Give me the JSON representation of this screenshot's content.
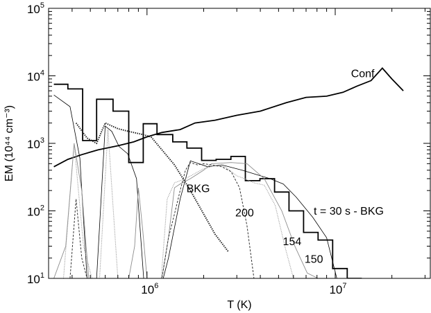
{
  "chart_data": {
    "type": "line",
    "xlabel": "T (K)",
    "ylabel": "EM (10⁴⁴ cm⁻³)",
    "x_scale": "log",
    "y_scale": "log",
    "xlim": [
      300000,
      32000000
    ],
    "ylim": [
      10,
      100000
    ],
    "x_ticks": [
      {
        "value": 1000000,
        "base": "10",
        "exp": "6"
      },
      {
        "value": 10000000,
        "base": "10",
        "exp": "7"
      }
    ],
    "y_ticks": [
      {
        "value": 10,
        "base": "10",
        "exp": "1"
      },
      {
        "value": 100,
        "base": "10",
        "exp": "2"
      },
      {
        "value": 1000,
        "base": "10",
        "exp": "3"
      },
      {
        "value": 10000,
        "base": "10",
        "exp": "4"
      },
      {
        "value": 100000,
        "base": "10",
        "exp": "5"
      }
    ],
    "annotations": [
      {
        "text": "Conf",
        "x": 14000000,
        "y": 9500
      },
      {
        "text": "BKG",
        "x": 1870000,
        "y": 190
      },
      {
        "text": "200",
        "x": 3300000,
        "y": 83
      },
      {
        "text": "154",
        "x": 5900000,
        "y": 31
      },
      {
        "text": "150",
        "x": 7700000,
        "y": 17
      },
      {
        "text": "t = 30 s - BKG",
        "x": 11800000,
        "y": 88
      }
    ],
    "series": [
      {
        "style": "black-bold",
        "kind": "line",
        "x": [
          320000,
          380000,
          450000,
          550000,
          700000,
          850000,
          1000000,
          1200000,
          1500000,
          1800000,
          2300000,
          3000000,
          4000000,
          5500000,
          7000000,
          9000000,
          11000000,
          13000000,
          15500000,
          17800000,
          20000000,
          23000000
        ],
        "y": [
          450,
          580,
          680,
          800,
          920,
          1050,
          1250,
          1450,
          1600,
          2000,
          2200,
          2600,
          3000,
          4000,
          4800,
          5000,
          5700,
          7000,
          8500,
          13000,
          9000,
          6000
        ]
      },
      {
        "style": "black-step",
        "kind": "step",
        "edges": [
          320000,
          380000,
          455000,
          540000,
          660000,
          800000,
          955000,
          1130000,
          1370000,
          1630000,
          1950000,
          2330000,
          2790000,
          3330000,
          3980000,
          4760000,
          5680000,
          6790000,
          8110000,
          9690000,
          11580000,
          13840000
        ],
        "y": [
          7500,
          6400,
          1100,
          4500,
          3000,
          520,
          1950,
          1350,
          1050,
          850,
          560,
          580,
          640,
          280,
          300,
          190,
          100,
          48,
          37,
          14,
          10
        ]
      },
      {
        "style": "thin",
        "kind": "line",
        "x": [
          320000,
          390000,
          440000,
          480000,
          510000,
          540000,
          600000,
          650000,
          710000,
          790000,
          880000,
          960000,
          1100000,
          1180000,
          1220000,
          1300000,
          1500000,
          1700000,
          2100000,
          2500000,
          3200000,
          4500000,
          5300000,
          6200000,
          7600000,
          9000000,
          10200000
        ],
        "y": [
          5200,
          3500,
          600,
          10,
          10,
          10,
          1800,
          1500,
          900,
          700,
          300,
          10,
          10,
          10,
          10,
          20,
          150,
          550,
          450,
          480,
          400,
          300,
          250,
          160,
          80,
          40,
          10
        ]
      },
      {
        "style": "dotted-heavy",
        "kind": "line",
        "x": [
          420000,
          480000,
          540000,
          600000,
          700000,
          800000,
          920000,
          1050000,
          1200000,
          1400000,
          1700000,
          2000000,
          2300000,
          2700000
        ],
        "y": [
          2000,
          1200,
          1000,
          2000,
          1650,
          1500,
          1380,
          1250,
          800,
          480,
          200,
          90,
          45,
          25
        ]
      },
      {
        "style": "gray-solid",
        "kind": "line",
        "x": [
          320000,
          370000,
          410000,
          450000,
          490000,
          520000,
          560000,
          620000,
          700000,
          800000,
          860000,
          900000,
          950000,
          1000000,
          1060000,
          1200000,
          1300000,
          1400000,
          1500000,
          1700000,
          2000000,
          2200000,
          2800000,
          3400000,
          4200000,
          5200000,
          6100000,
          7100000,
          8100000
        ],
        "y": [
          10,
          30,
          1000,
          200,
          10,
          10,
          10,
          10,
          10,
          10,
          30,
          220,
          50,
          10,
          10,
          10,
          40,
          220,
          250,
          300,
          400,
          500,
          520,
          500,
          300,
          100,
          30,
          12,
          10
        ]
      },
      {
        "style": "gray-dotted",
        "kind": "line",
        "x": [
          360000,
          410000,
          460000,
          510000,
          560000,
          620000,
          700000,
          1190000,
          1280000,
          1400000,
          1600000,
          2000000,
          2300000,
          2600000,
          3000000,
          3300000,
          3700000,
          4200000,
          4800000,
          5400000,
          6000000
        ],
        "y": [
          10,
          1000,
          30,
          10,
          10,
          1600,
          10,
          10,
          150,
          260,
          300,
          420,
          470,
          450,
          330,
          300,
          260,
          240,
          120,
          30,
          10
        ]
      },
      {
        "style": "dashed-dark",
        "kind": "line",
        "x": [
          330000,
          390000,
          420000,
          450000,
          480000,
          520000,
          560000,
          600000,
          650000,
          700000,
          1200000,
          1300000,
          1400000,
          1500000,
          1600000,
          1700000,
          1850000,
          2000000,
          2200000,
          2500000,
          2800000,
          3100000,
          3400000,
          3700000
        ],
        "y": [
          10,
          10,
          150,
          20,
          10,
          10,
          10,
          10,
          10,
          10,
          10,
          40,
          90,
          200,
          400,
          520,
          480,
          500,
          480,
          450,
          380,
          220,
          60,
          10
        ]
      }
    ]
  }
}
